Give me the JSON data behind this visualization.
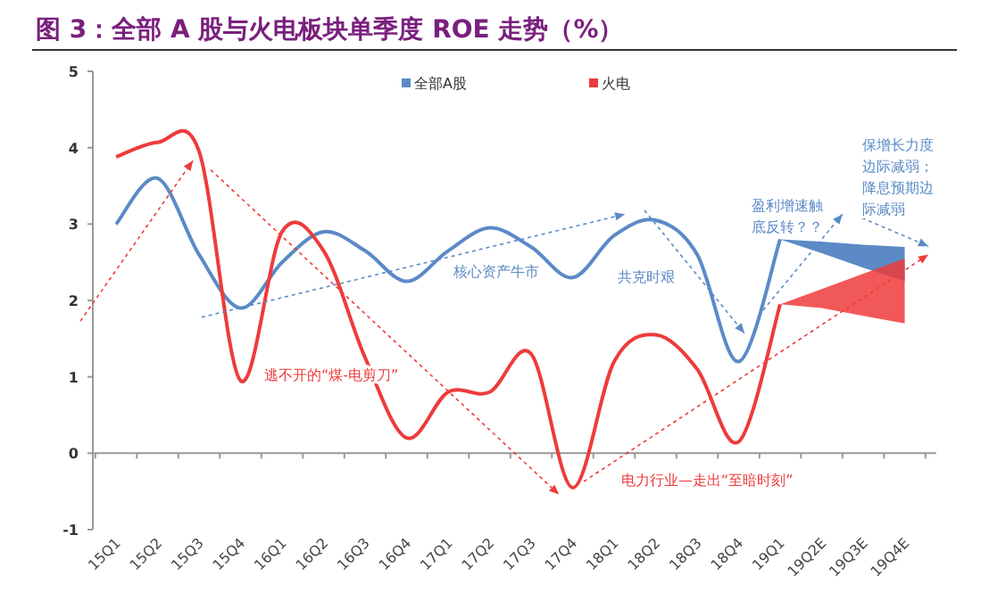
{
  "chart_data": {
    "type": "line",
    "title": "图 3：全部 A 股与火电板块单季度 ROE 走势（%）",
    "categories": [
      "15Q1",
      "15Q2",
      "15Q3",
      "15Q4",
      "16Q1",
      "16Q2",
      "16Q3",
      "16Q4",
      "17Q1",
      "17Q2",
      "17Q3",
      "17Q4",
      "18Q1",
      "18Q2",
      "18Q3",
      "18Q4",
      "19Q1",
      "19Q2E",
      "19Q3E",
      "19Q4E"
    ],
    "series": [
      {
        "name": "全部A股",
        "color": "#5b8ac6",
        "values": [
          3.0,
          3.6,
          2.6,
          1.9,
          2.5,
          2.9,
          2.65,
          2.25,
          2.65,
          2.95,
          2.7,
          2.3,
          2.85,
          3.05,
          2.6,
          1.2,
          2.8,
          null,
          null,
          null
        ],
        "lower": [
          null,
          null,
          null,
          null,
          null,
          null,
          null,
          null,
          null,
          null,
          null,
          null,
          null,
          null,
          null,
          null,
          2.8,
          2.62,
          2.43,
          2.25
        ],
        "upper": [
          null,
          null,
          null,
          null,
          null,
          null,
          null,
          null,
          null,
          null,
          null,
          null,
          null,
          null,
          null,
          null,
          2.8,
          2.77,
          2.73,
          2.7
        ]
      },
      {
        "name": "火电",
        "color": "#ee3b3b",
        "values": [
          3.88,
          4.07,
          3.95,
          0.95,
          2.9,
          2.65,
          1.25,
          0.2,
          0.8,
          0.8,
          1.3,
          -0.45,
          1.2,
          1.55,
          1.1,
          0.15,
          1.95,
          null,
          null,
          null
        ],
        "lower": [
          null,
          null,
          null,
          null,
          null,
          null,
          null,
          null,
          null,
          null,
          null,
          null,
          null,
          null,
          null,
          null,
          1.95,
          1.9,
          1.8,
          1.7
        ],
        "upper": [
          null,
          null,
          null,
          null,
          null,
          null,
          null,
          null,
          null,
          null,
          null,
          null,
          null,
          null,
          null,
          null,
          1.95,
          2.15,
          2.35,
          2.55
        ]
      }
    ],
    "ylim": [
      -1,
      5
    ],
    "yticks": [
      -1,
      0,
      1,
      2,
      3,
      4,
      5
    ],
    "legend": "top",
    "annotations": [
      "逃不开的“煤-电剪刀”",
      "核心资产牛市",
      "共克时艰",
      "盈利增速触底反转？？",
      "保增长力度边际减弱；降息预期边际减弱",
      "电力行业—走出“至暗时刻”"
    ]
  }
}
